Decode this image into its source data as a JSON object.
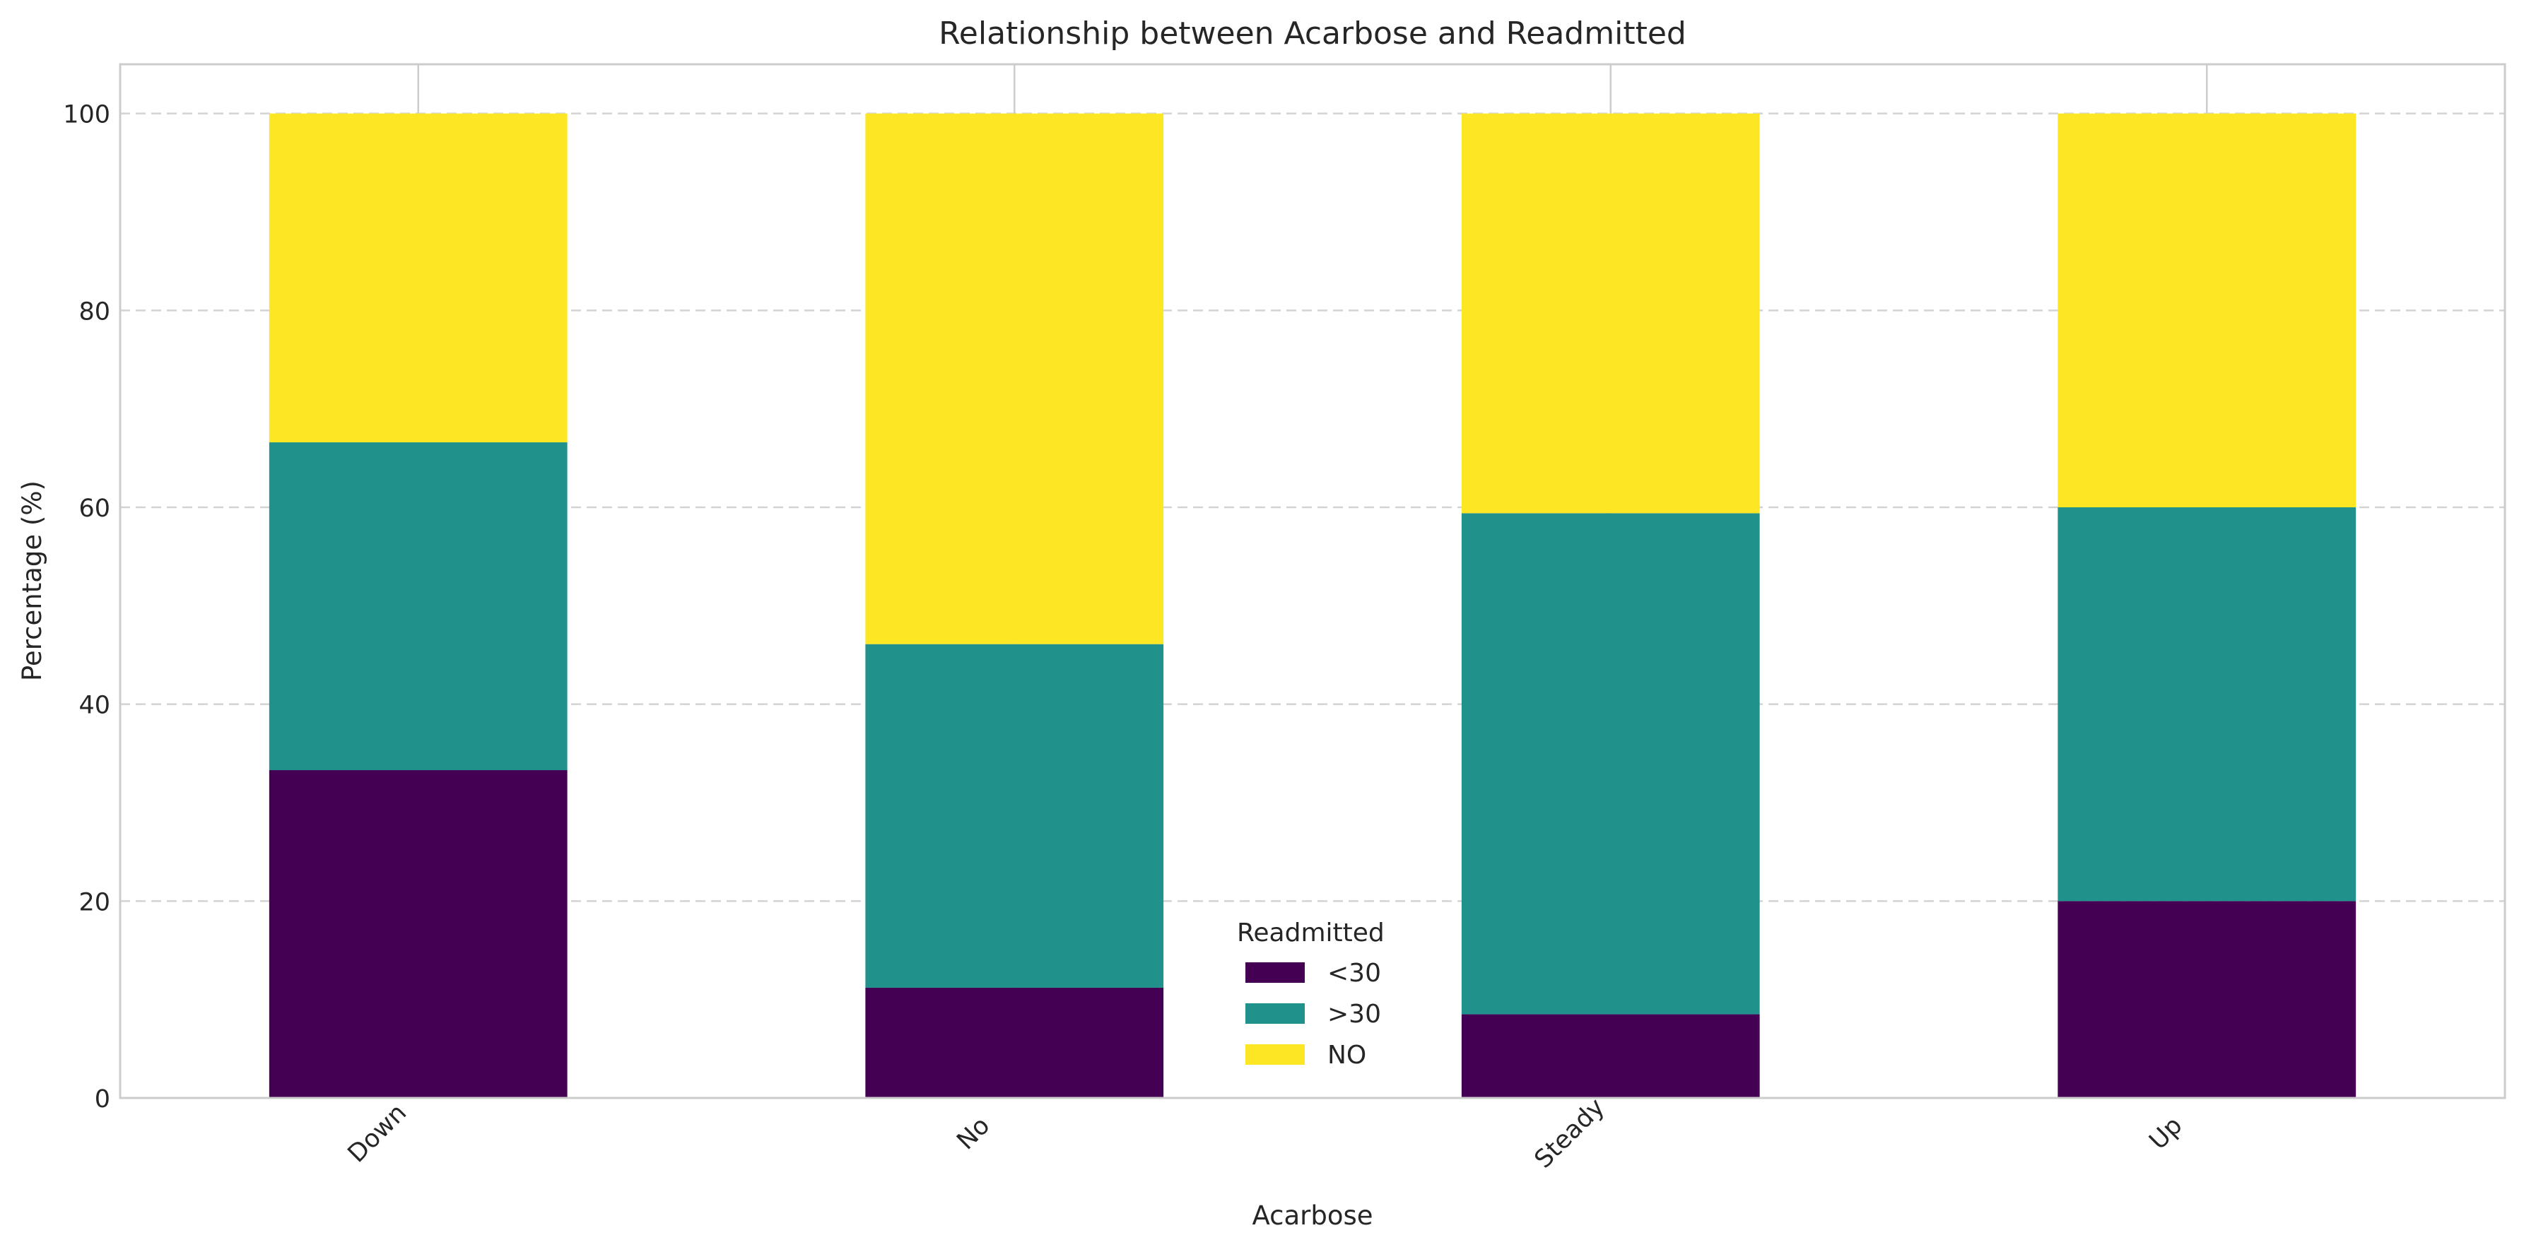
{
  "chart_data": {
    "type": "bar",
    "stacked": true,
    "title": "Relationship between Acarbose and Readmitted",
    "xlabel": "Acarbose",
    "ylabel": "Percentage (%)",
    "ylim": [
      0,
      105
    ],
    "yticks": [
      0,
      20,
      40,
      60,
      80,
      100
    ],
    "grid": true,
    "categories": [
      "Down",
      "No",
      "Steady",
      "Up"
    ],
    "series": [
      {
        "name": "<30",
        "color": "#440154",
        "values": [
          33.3,
          11.2,
          8.5,
          20.0
        ]
      },
      {
        "name": ">30",
        "color": "#21918c",
        "values": [
          33.3,
          34.9,
          50.9,
          40.0
        ]
      },
      {
        "name": "NO",
        "color": "#fde725",
        "values": [
          33.4,
          53.9,
          40.6,
          40.0
        ]
      }
    ],
    "legend": {
      "title": "Readmitted",
      "placement": "lower center"
    }
  }
}
